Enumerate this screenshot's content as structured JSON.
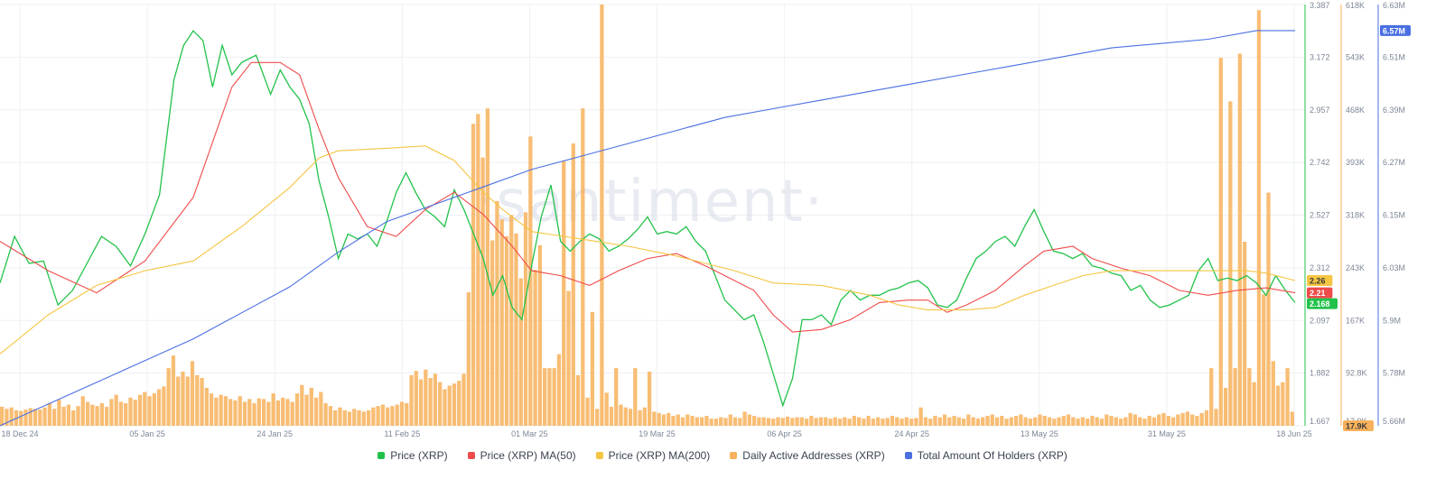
{
  "watermark": "·santiment·",
  "colors": {
    "price": "#22c24a",
    "ma50": "#ef4b4b",
    "ma200": "#f5c542",
    "daa": "#f7b15c",
    "holders": "#4a6fe3",
    "grid": "#eef0f4",
    "text": "#7d8797"
  },
  "legend": [
    {
      "name": "Price (XRP)",
      "color": "#22c24a"
    },
    {
      "name": "Price (XRP) MA(50)",
      "color": "#ef4b4b"
    },
    {
      "name": "Price (XRP) MA(200)",
      "color": "#f5c542"
    },
    {
      "name": "Daily Active Addresses (XRP)",
      "color": "#f7b15c"
    },
    {
      "name": "Total Amount Of Holders (XRP)",
      "color": "#4a6fe3"
    }
  ],
  "chart_data": {
    "type": "line",
    "grid": true,
    "legend_position": "bottom",
    "x_ticks": [
      "18 Dec 24",
      "05 Jan 25",
      "24 Jan 25",
      "11 Feb 25",
      "01 Mar 25",
      "19 Mar 25",
      "06 Apr 25",
      "24 Apr 25",
      "13 May 25",
      "31 May 25",
      "18 Jun 25"
    ],
    "x_range": [
      "18 Dec 24",
      "18 Jun 25"
    ],
    "axes": {
      "price": {
        "ticks": [
          "3.387",
          "3.172",
          "2.957",
          "2.742",
          "2.527",
          "2.312",
          "2.097",
          "1.882",
          "1.667"
        ],
        "range": [
          1.667,
          3.387
        ]
      },
      "daa": {
        "ticks": [
          "618K",
          "543K",
          "468K",
          "393K",
          "318K",
          "243K",
          "167K",
          "92.8K",
          "17.9K"
        ],
        "range": [
          17900,
          618000
        ]
      },
      "holders": {
        "ticks": [
          "6.63M",
          "6.51M",
          "6.39M",
          "6.27M",
          "6.15M",
          "6.03M",
          "5.9M",
          "5.78M",
          "5.66M"
        ],
        "range": [
          5660000,
          6630000
        ]
      }
    },
    "current_values": {
      "price": "2.168",
      "ma50": "2.21",
      "ma200": "2.26",
      "holders": "6.57M",
      "daa_min": "17.9K"
    },
    "series": [
      {
        "name": "Price (XRP)",
        "axis": "price",
        "points": [
          [
            0,
            2.25
          ],
          [
            3,
            2.44
          ],
          [
            6,
            2.33
          ],
          [
            9,
            2.34
          ],
          [
            12,
            2.16
          ],
          [
            15,
            2.22
          ],
          [
            18,
            2.33
          ],
          [
            21,
            2.44
          ],
          [
            24,
            2.4
          ],
          [
            27,
            2.32
          ],
          [
            30,
            2.45
          ],
          [
            33,
            2.61
          ],
          [
            36,
            3.08
          ],
          [
            38,
            3.22
          ],
          [
            40,
            3.28
          ],
          [
            42,
            3.24
          ],
          [
            44,
            3.05
          ],
          [
            46,
            3.22
          ],
          [
            48,
            3.1
          ],
          [
            50,
            3.15
          ],
          [
            53,
            3.18
          ],
          [
            56,
            3.02
          ],
          [
            58,
            3.12
          ],
          [
            60,
            3.05
          ],
          [
            62,
            3.0
          ],
          [
            64,
            2.9
          ],
          [
            66,
            2.67
          ],
          [
            68,
            2.52
          ],
          [
            70,
            2.35
          ],
          [
            72,
            2.45
          ],
          [
            74,
            2.43
          ],
          [
            76,
            2.45
          ],
          [
            78,
            2.4
          ],
          [
            80,
            2.5
          ],
          [
            82,
            2.62
          ],
          [
            84,
            2.7
          ],
          [
            86,
            2.62
          ],
          [
            88,
            2.55
          ],
          [
            90,
            2.52
          ],
          [
            92,
            2.48
          ],
          [
            94,
            2.63
          ],
          [
            96,
            2.55
          ],
          [
            98,
            2.45
          ],
          [
            100,
            2.35
          ],
          [
            102,
            2.2
          ],
          [
            104,
            2.28
          ],
          [
            106,
            2.15
          ],
          [
            108,
            2.1
          ],
          [
            110,
            2.32
          ],
          [
            112,
            2.52
          ],
          [
            114,
            2.65
          ],
          [
            116,
            2.42
          ],
          [
            118,
            2.38
          ],
          [
            120,
            2.42
          ],
          [
            122,
            2.45
          ],
          [
            124,
            2.43
          ],
          [
            126,
            2.38
          ],
          [
            128,
            2.4
          ],
          [
            130,
            2.43
          ],
          [
            132,
            2.47
          ],
          [
            134,
            2.52
          ],
          [
            136,
            2.45
          ],
          [
            138,
            2.46
          ],
          [
            140,
            2.45
          ],
          [
            142,
            2.48
          ],
          [
            144,
            2.42
          ],
          [
            146,
            2.38
          ],
          [
            148,
            2.28
          ],
          [
            150,
            2.18
          ],
          [
            152,
            2.14
          ],
          [
            154,
            2.1
          ],
          [
            156,
            2.12
          ],
          [
            158,
            2.01
          ],
          [
            160,
            1.88
          ],
          [
            162,
            1.75
          ],
          [
            164,
            1.86
          ],
          [
            166,
            2.1
          ],
          [
            168,
            2.1
          ],
          [
            170,
            2.12
          ],
          [
            172,
            2.08
          ],
          [
            174,
            2.18
          ],
          [
            176,
            2.22
          ],
          [
            178,
            2.18
          ],
          [
            180,
            2.2
          ],
          [
            182,
            2.2
          ],
          [
            184,
            2.22
          ],
          [
            186,
            2.23
          ],
          [
            188,
            2.25
          ],
          [
            190,
            2.26
          ],
          [
            192,
            2.23
          ],
          [
            194,
            2.16
          ],
          [
            196,
            2.15
          ],
          [
            198,
            2.18
          ],
          [
            200,
            2.27
          ],
          [
            202,
            2.35
          ],
          [
            204,
            2.38
          ],
          [
            206,
            2.42
          ],
          [
            208,
            2.44
          ],
          [
            210,
            2.4
          ],
          [
            212,
            2.48
          ],
          [
            214,
            2.55
          ],
          [
            216,
            2.46
          ],
          [
            218,
            2.38
          ],
          [
            220,
            2.37
          ],
          [
            222,
            2.35
          ],
          [
            224,
            2.37
          ],
          [
            226,
            2.32
          ],
          [
            228,
            2.31
          ],
          [
            230,
            2.29
          ],
          [
            232,
            2.28
          ],
          [
            234,
            2.22
          ],
          [
            236,
            2.24
          ],
          [
            238,
            2.18
          ],
          [
            240,
            2.15
          ],
          [
            242,
            2.16
          ],
          [
            244,
            2.18
          ],
          [
            246,
            2.2
          ],
          [
            248,
            2.3
          ],
          [
            250,
            2.35
          ],
          [
            252,
            2.26
          ],
          [
            254,
            2.27
          ],
          [
            256,
            2.26
          ],
          [
            258,
            2.28
          ],
          [
            260,
            2.25
          ],
          [
            262,
            2.2
          ],
          [
            264,
            2.28
          ],
          [
            266,
            2.22
          ],
          [
            268,
            2.17
          ]
        ]
      },
      {
        "name": "Price (XRP) MA(50)",
        "axis": "price",
        "points": [
          [
            0,
            2.42
          ],
          [
            10,
            2.3
          ],
          [
            20,
            2.21
          ],
          [
            30,
            2.34
          ],
          [
            40,
            2.6
          ],
          [
            48,
            3.05
          ],
          [
            52,
            3.15
          ],
          [
            58,
            3.15
          ],
          [
            62,
            3.1
          ],
          [
            66,
            2.88
          ],
          [
            70,
            2.68
          ],
          [
            76,
            2.48
          ],
          [
            82,
            2.44
          ],
          [
            88,
            2.55
          ],
          [
            94,
            2.62
          ],
          [
            100,
            2.53
          ],
          [
            106,
            2.4
          ],
          [
            110,
            2.3
          ],
          [
            116,
            2.28
          ],
          [
            122,
            2.24
          ],
          [
            128,
            2.3
          ],
          [
            134,
            2.35
          ],
          [
            140,
            2.37
          ],
          [
            146,
            2.32
          ],
          [
            150,
            2.28
          ],
          [
            156,
            2.22
          ],
          [
            160,
            2.12
          ],
          [
            164,
            2.05
          ],
          [
            170,
            2.06
          ],
          [
            176,
            2.1
          ],
          [
            182,
            2.17
          ],
          [
            188,
            2.18
          ],
          [
            192,
            2.18
          ],
          [
            196,
            2.13
          ],
          [
            200,
            2.16
          ],
          [
            206,
            2.22
          ],
          [
            212,
            2.32
          ],
          [
            216,
            2.38
          ],
          [
            222,
            2.4
          ],
          [
            226,
            2.35
          ],
          [
            232,
            2.31
          ],
          [
            238,
            2.28
          ],
          [
            244,
            2.22
          ],
          [
            250,
            2.2
          ],
          [
            256,
            2.22
          ],
          [
            262,
            2.23
          ],
          [
            268,
            2.21
          ]
        ]
      },
      {
        "name": "Price (XRP) MA(200)",
        "axis": "price",
        "points": [
          [
            0,
            1.96
          ],
          [
            10,
            2.12
          ],
          [
            20,
            2.24
          ],
          [
            30,
            2.3
          ],
          [
            40,
            2.34
          ],
          [
            50,
            2.48
          ],
          [
            60,
            2.64
          ],
          [
            66,
            2.76
          ],
          [
            70,
            2.79
          ],
          [
            80,
            2.8
          ],
          [
            88,
            2.81
          ],
          [
            94,
            2.75
          ],
          [
            100,
            2.62
          ],
          [
            104,
            2.55
          ],
          [
            110,
            2.46
          ],
          [
            120,
            2.43
          ],
          [
            130,
            2.4
          ],
          [
            140,
            2.36
          ],
          [
            146,
            2.33
          ],
          [
            152,
            2.3
          ],
          [
            160,
            2.25
          ],
          [
            170,
            2.24
          ],
          [
            180,
            2.2
          ],
          [
            186,
            2.16
          ],
          [
            192,
            2.14
          ],
          [
            200,
            2.14
          ],
          [
            206,
            2.15
          ],
          [
            212,
            2.2
          ],
          [
            218,
            2.24
          ],
          [
            224,
            2.28
          ],
          [
            230,
            2.3
          ],
          [
            240,
            2.3
          ],
          [
            250,
            2.3
          ],
          [
            258,
            2.3
          ],
          [
            262,
            2.29
          ],
          [
            268,
            2.26
          ]
        ]
      },
      {
        "name": "Total Amount Of Holders (XRP)",
        "axis": "holders",
        "points": [
          [
            0,
            5.66
          ],
          [
            10,
            5.71
          ],
          [
            20,
            5.76
          ],
          [
            30,
            5.81
          ],
          [
            40,
            5.86
          ],
          [
            50,
            5.92
          ],
          [
            60,
            5.98
          ],
          [
            70,
            6.06
          ],
          [
            80,
            6.13
          ],
          [
            90,
            6.17
          ],
          [
            100,
            6.21
          ],
          [
            110,
            6.25
          ],
          [
            120,
            6.28
          ],
          [
            130,
            6.31
          ],
          [
            140,
            6.34
          ],
          [
            150,
            6.37
          ],
          [
            160,
            6.39
          ],
          [
            170,
            6.41
          ],
          [
            180,
            6.43
          ],
          [
            190,
            6.45
          ],
          [
            200,
            6.47
          ],
          [
            210,
            6.49
          ],
          [
            220,
            6.51
          ],
          [
            230,
            6.53
          ],
          [
            240,
            6.54
          ],
          [
            250,
            6.55
          ],
          [
            260,
            6.57
          ],
          [
            268,
            6.57
          ]
        ]
      }
    ],
    "bars": {
      "name": "Daily Active Addresses (XRP)",
      "axis": "daa",
      "values": [
        45,
        42,
        44,
        40,
        39,
        41,
        43,
        42,
        41,
        44,
        50,
        42,
        55,
        45,
        48,
        40,
        46,
        60,
        52,
        48,
        46,
        50,
        45,
        56,
        62,
        52,
        50,
        58,
        55,
        62,
        66,
        60,
        64,
        70,
        74,
        100,
        118,
        88,
        95,
        88,
        110,
        90,
        86,
        72,
        64,
        58,
        62,
        60,
        56,
        54,
        60,
        52,
        56,
        50,
        57,
        56,
        52,
        64,
        54,
        58,
        56,
        52,
        64,
        76,
        62,
        72,
        58,
        66,
        50,
        46,
        40,
        44,
        40,
        38,
        42,
        40,
        38,
        40,
        44,
        46,
        48,
        44,
        46,
        48,
        52,
        50,
        90,
        96,
        84,
        98,
        86,
        92,
        80,
        70,
        75,
        78,
        82,
        92,
        208,
        448,
        462,
        400,
        470,
        282,
        338,
        312,
        288,
        318,
        292,
        228,
        322,
        430,
        240,
        275,
        100,
        100,
        100,
        120,
        395,
        210,
        420,
        90,
        470,
        58,
        180,
        42,
        618,
        65,
        45,
        100,
        48,
        44,
        42,
        100,
        40,
        44,
        95,
        38,
        36,
        34,
        36,
        32,
        34,
        30,
        34,
        32,
        30,
        30,
        32,
        28,
        28,
        30,
        29,
        34,
        30,
        29,
        38,
        34,
        32,
        30,
        30,
        29,
        28,
        30,
        29,
        31,
        29,
        30,
        30,
        28,
        32,
        29,
        30,
        30,
        28,
        30,
        28,
        30,
        28,
        32,
        30,
        28,
        32,
        28,
        30,
        28,
        29,
        32,
        30,
        28,
        30,
        28,
        29,
        44,
        30,
        28,
        32,
        30,
        34,
        30,
        32,
        30,
        28,
        34,
        30,
        28,
        30,
        32,
        34,
        30,
        32,
        28,
        30,
        32,
        34,
        30,
        28,
        30,
        34,
        32,
        30,
        28,
        30,
        32,
        34,
        30,
        28,
        30,
        28,
        32,
        30,
        28,
        34,
        32,
        30,
        28,
        30,
        36,
        34,
        30,
        28,
        32,
        30,
        34,
        36,
        32,
        30,
        34,
        36,
        38,
        34,
        32,
        36,
        40,
        100,
        42,
        542,
        72,
        480,
        100,
        548,
        280,
        100,
        80,
        610,
        205,
        350,
        110,
        75,
        80,
        100,
        38
      ]
    }
  }
}
